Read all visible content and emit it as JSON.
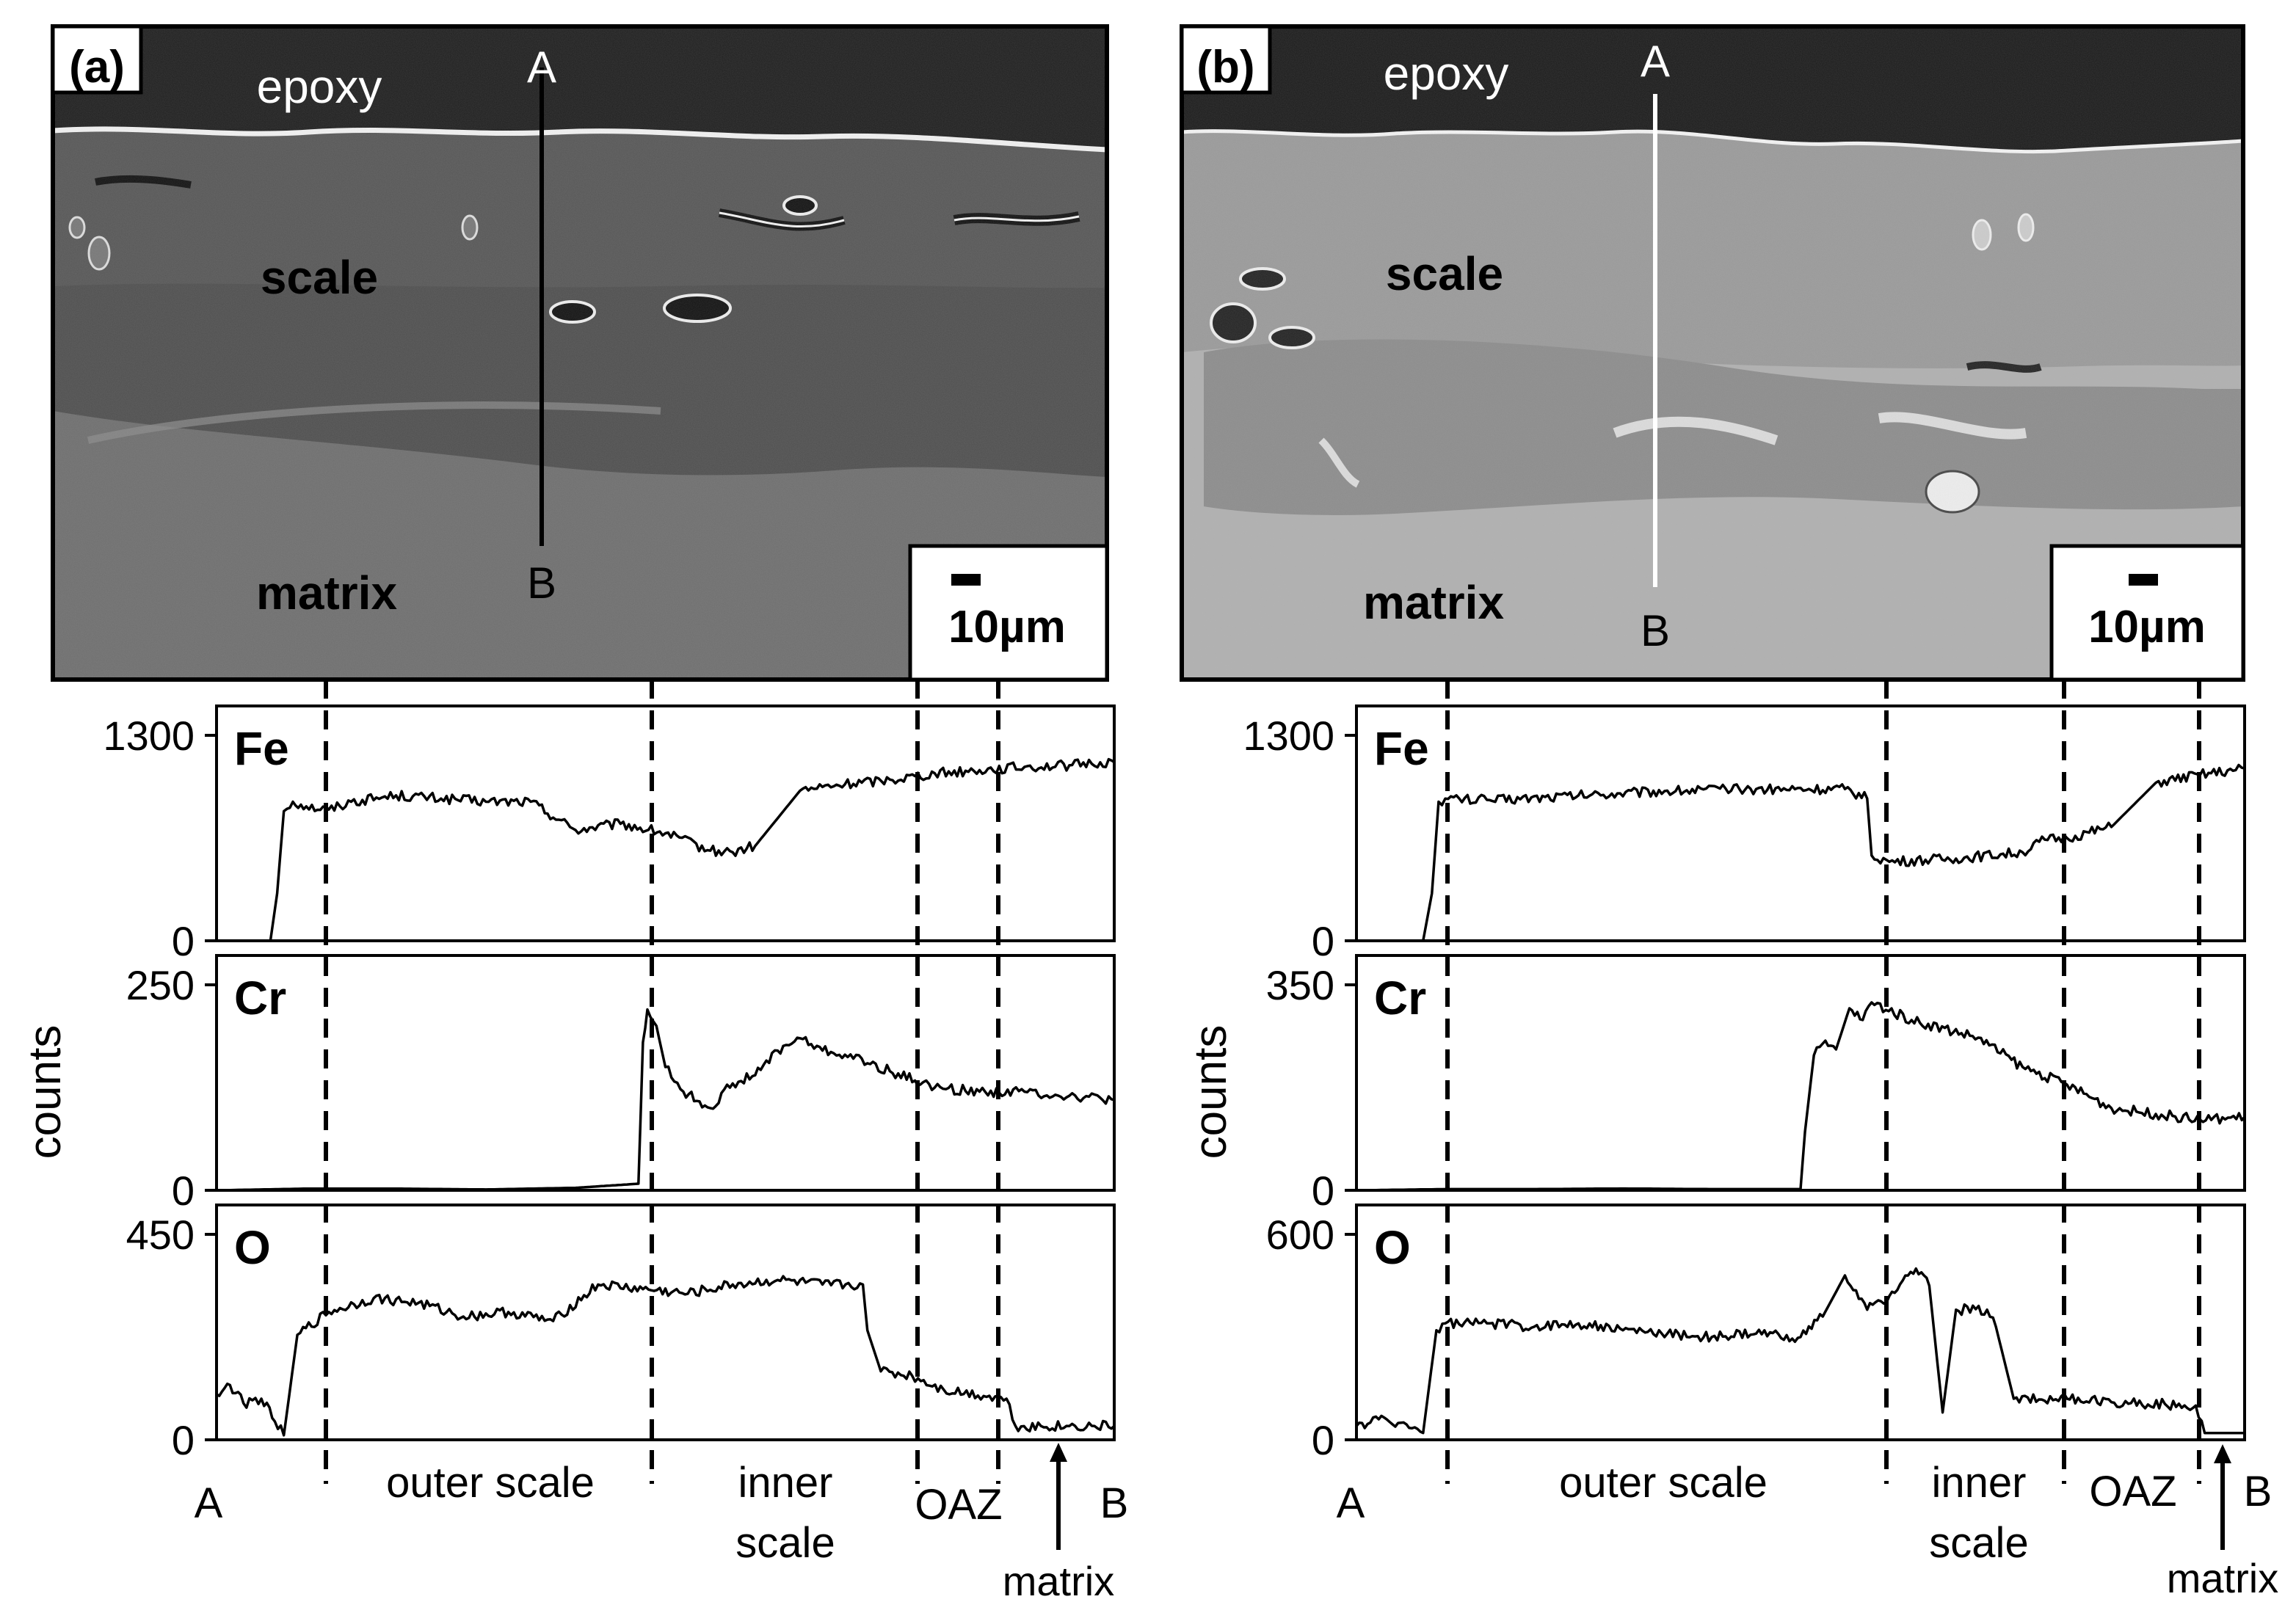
{
  "figure": {
    "panels": [
      {
        "id": "a",
        "label": "(a)",
        "image_labels": {
          "epoxy": "epoxy",
          "scale": "scale",
          "matrix": "matrix",
          "A": "A",
          "B": "B",
          "scale_bar": "10µm"
        },
        "y_axis_label": "counts",
        "region_labels": {
          "A": "A",
          "B": "B",
          "outer": "outer scale",
          "inner1": "inner",
          "inner2": "scale",
          "oaz": "OAZ",
          "matrix": "matrix"
        }
      },
      {
        "id": "b",
        "label": "(b)",
        "image_labels": {
          "epoxy": "epoxy",
          "scale": "scale",
          "matrix": "matrix",
          "A": "A",
          "B": "B",
          "scale_bar": "10µm"
        },
        "y_axis_label": "counts",
        "region_labels": {
          "A": "A",
          "B": "B",
          "outer": "outer scale",
          "inner1": "inner",
          "inner2": "scale",
          "oaz": "OAZ",
          "matrix": "matrix"
        }
      }
    ]
  },
  "chart_data": [
    {
      "type": "line",
      "panel": "a",
      "name": "Fe",
      "ylim": [
        0,
        1300
      ],
      "ytick_labels": [
        "0",
        "1300"
      ],
      "x": [
        0,
        12,
        13.5,
        15,
        17,
        20,
        25,
        30,
        40,
        50,
        60,
        70,
        80,
        90,
        100,
        110,
        115,
        120,
        130,
        140,
        150,
        160,
        170,
        180,
        190,
        195,
        200
      ],
      "y": [
        0,
        0,
        300,
        820,
        880,
        850,
        830,
        880,
        920,
        900,
        880,
        880,
        700,
        740,
        680,
        570,
        560,
        600,
        950,
        990,
        1020,
        1060,
        1080,
        1100,
        1110,
        1120,
        1130
      ]
    },
    {
      "type": "line",
      "panel": "a",
      "name": "Cr",
      "ylim": [
        0,
        250
      ],
      "ytick_labels": [
        "0",
        "250"
      ],
      "x": [
        0,
        20,
        40,
        60,
        80,
        94,
        95,
        96,
        98,
        100,
        104,
        110,
        115,
        120,
        125,
        130,
        135,
        140,
        150,
        160,
        170,
        180,
        190,
        200
      ],
      "y": [
        0,
        2,
        2,
        1,
        3,
        8,
        180,
        220,
        200,
        150,
        120,
        100,
        130,
        140,
        170,
        185,
        170,
        165,
        145,
        125,
        120,
        120,
        115,
        110
      ]
    },
    {
      "type": "line",
      "panel": "a",
      "name": "O",
      "ylim": [
        0,
        450
      ],
      "ytick_labels": [
        "0",
        "450"
      ],
      "x": [
        0,
        3,
        6,
        10,
        13,
        15,
        18,
        25,
        35,
        45,
        55,
        65,
        75,
        85,
        95,
        105,
        115,
        125,
        135,
        144,
        145,
        148,
        155,
        162,
        176,
        178,
        190,
        200
      ],
      "y": [
        100,
        120,
        80,
        90,
        40,
        10,
        230,
        280,
        310,
        300,
        270,
        280,
        260,
        340,
        330,
        320,
        340,
        350,
        340,
        340,
        240,
        150,
        140,
        110,
        90,
        30,
        30,
        30
      ]
    },
    {
      "type": "line",
      "panel": "b",
      "name": "Fe",
      "ylim": [
        0,
        1300
      ],
      "ytick_labels": [
        "0",
        "1300"
      ],
      "x": [
        0,
        15,
        17,
        18.5,
        20,
        30,
        50,
        70,
        90,
        110,
        115,
        116,
        120,
        135,
        150,
        155,
        160,
        170,
        180,
        190,
        198,
        200
      ],
      "y": [
        0,
        0,
        300,
        880,
        900,
        890,
        920,
        950,
        960,
        960,
        900,
        540,
        500,
        520,
        560,
        640,
        650,
        720,
        1000,
        1050,
        1080,
        1090
      ]
    },
    {
      "type": "line",
      "panel": "b",
      "name": "Cr",
      "ylim": [
        0,
        350
      ],
      "ytick_labels": [
        "0",
        "350"
      ],
      "x": [
        0,
        20,
        40,
        60,
        80,
        100,
        101,
        103,
        105,
        108,
        111,
        114,
        116,
        125,
        140,
        150,
        160,
        170,
        180,
        190,
        200
      ],
      "y": [
        0,
        2,
        2,
        3,
        2,
        2,
        100,
        230,
        250,
        240,
        310,
        290,
        320,
        290,
        260,
        210,
        180,
        140,
        130,
        120,
        125
      ]
    },
    {
      "type": "line",
      "panel": "b",
      "name": "O",
      "ylim": [
        0,
        600
      ],
      "ytick_labels": [
        "0",
        "600"
      ],
      "x": [
        0,
        5,
        10,
        15,
        18,
        20,
        30,
        40,
        50,
        60,
        70,
        80,
        90,
        100,
        105,
        110,
        115,
        120,
        126,
        129,
        132,
        135,
        142,
        144,
        148,
        160,
        170,
        189,
        191,
        200
      ],
      "y": [
        40,
        60,
        50,
        20,
        320,
        340,
        340,
        330,
        340,
        320,
        310,
        300,
        310,
        300,
        360,
        480,
        380,
        420,
        500,
        450,
        80,
        380,
        380,
        330,
        120,
        120,
        110,
        100,
        20,
        20
      ]
    }
  ]
}
